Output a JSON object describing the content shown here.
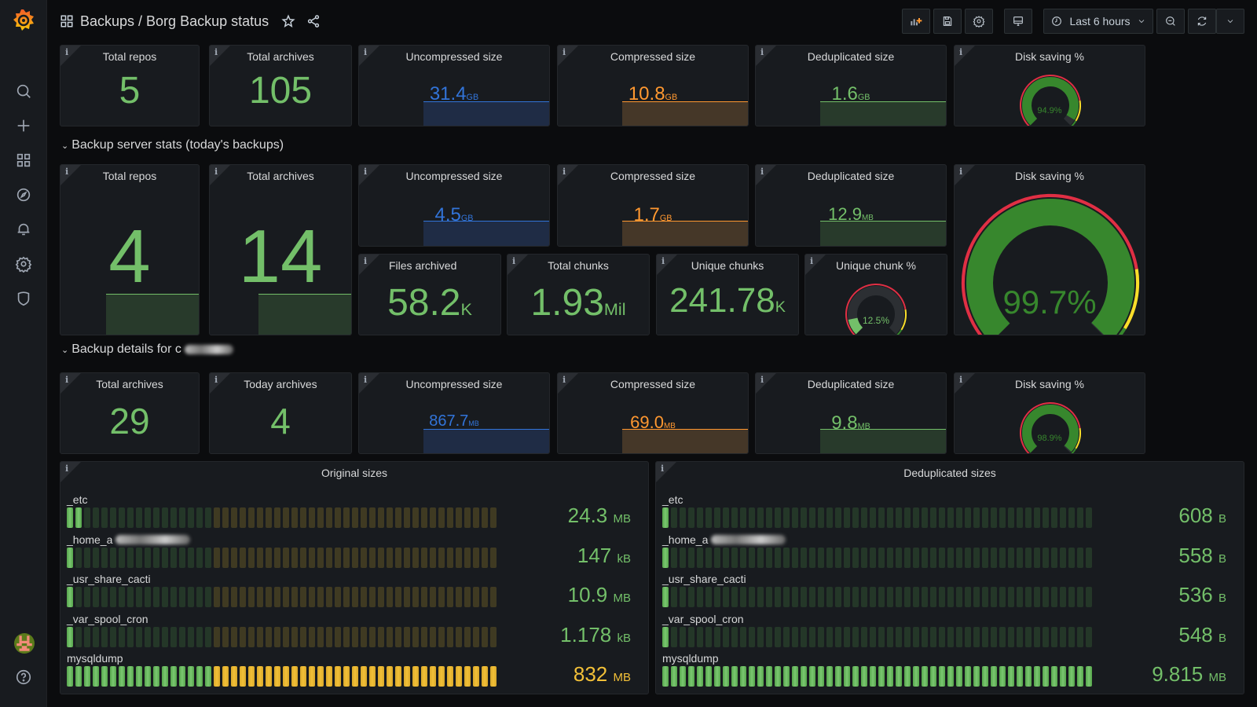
{
  "header": {
    "breadcrumb": "Backups / Borg Backup status",
    "time_range": "Last 6 hours"
  },
  "icons": {
    "sidebar": [
      "search-icon",
      "plus-icon",
      "dashboards-icon",
      "explore-compass-icon",
      "alerting-bell-icon",
      "configuration-gear-icon",
      "shield-icon"
    ],
    "bottom": [
      "avatar",
      "help-icon"
    ],
    "toolbar": [
      "add-panel-icon",
      "save-icon",
      "settings-icon",
      "tv-mode-icon",
      "clock-icon",
      "zoom-out-icon",
      "refresh-icon",
      "chevron-down-icon"
    ]
  },
  "colors": {
    "green": "#73bf69",
    "blue": "#3274d9",
    "orange": "#ff9830",
    "yellow": "#fade2a",
    "red": "#e02f44",
    "gauge_green": "#37872d"
  },
  "top_row": {
    "total_repos": {
      "title": "Total repos",
      "value": "5"
    },
    "total_archives": {
      "title": "Total archives",
      "value": "105"
    },
    "uncompressed": {
      "title": "Uncompressed size",
      "value": "31.4",
      "unit": "GB"
    },
    "compressed": {
      "title": "Compressed size",
      "value": "10.8",
      "unit": "GB"
    },
    "deduplicated": {
      "title": "Deduplicated size",
      "value": "1.6",
      "unit": "GB"
    },
    "disk_saving": {
      "title": "Disk saving %",
      "value": "94.9%",
      "percent": 94.9
    }
  },
  "server_row": {
    "title": "Backup server stats (today's backups)",
    "total_repos": {
      "title": "Total repos",
      "value": "4"
    },
    "total_archives": {
      "title": "Total archives",
      "value": "14"
    },
    "uncompressed": {
      "title": "Uncompressed size",
      "value": "4.5",
      "unit": "GB"
    },
    "compressed": {
      "title": "Compressed size",
      "value": "1.7",
      "unit": "GB"
    },
    "deduplicated": {
      "title": "Deduplicated size",
      "value": "12.9",
      "unit": "MB"
    },
    "files_archived": {
      "title": "Files archived",
      "value": "58.2",
      "unit": "K"
    },
    "total_chunks": {
      "title": "Total chunks",
      "value": "1.93",
      "unit": "Mil"
    },
    "unique_chunks": {
      "title": "Unique chunks",
      "value": "241.78",
      "unit": "K"
    },
    "unique_chunk_pct": {
      "title": "Unique chunk %",
      "value": "12.5%",
      "percent": 12.5
    },
    "disk_saving": {
      "title": "Disk saving %",
      "value": "99.7%",
      "percent": 99.7
    }
  },
  "details_row": {
    "title": "Backup details for c",
    "total_archives": {
      "title": "Total archives",
      "value": "29"
    },
    "today_archives": {
      "title": "Today archives",
      "value": "4"
    },
    "uncompressed": {
      "title": "Uncompressed size",
      "value": "867.7",
      "unit": "MB"
    },
    "compressed": {
      "title": "Compressed size",
      "value": "69.0",
      "unit": "MB"
    },
    "deduplicated": {
      "title": "Deduplicated size",
      "value": "9.8",
      "unit": "MB"
    },
    "disk_saving": {
      "title": "Disk saving %",
      "value": "98.9%",
      "percent": 98.9
    }
  },
  "original_sizes": {
    "title": "Original sizes",
    "rows": [
      {
        "label": "_etc",
        "value": "24.3",
        "unit": "MB",
        "lit_cells": 2,
        "color": "green"
      },
      {
        "label": "_home_a",
        "value": "147",
        "unit": "kB",
        "lit_cells": 1,
        "color": "green"
      },
      {
        "label": "_usr_share_cacti",
        "value": "10.9",
        "unit": "MB",
        "lit_cells": 1,
        "color": "green"
      },
      {
        "label": "_var_spool_cron",
        "value": "1.178",
        "unit": "kB",
        "lit_cells": 1,
        "color": "green"
      },
      {
        "label": "mysqldump",
        "value": "832",
        "unit": "MB",
        "lit_cells": 50,
        "color": "yellow"
      }
    ]
  },
  "dedup_sizes": {
    "title": "Deduplicated sizes",
    "rows": [
      {
        "label": "_etc",
        "value": "608",
        "unit": "B",
        "lit_cells": 1,
        "color": "green"
      },
      {
        "label": "_home_a",
        "value": "558",
        "unit": "B",
        "lit_cells": 1,
        "color": "green"
      },
      {
        "label": "_usr_share_cacti",
        "value": "536",
        "unit": "B",
        "lit_cells": 1,
        "color": "green"
      },
      {
        "label": "_var_spool_cron",
        "value": "548",
        "unit": "B",
        "lit_cells": 1,
        "color": "green"
      },
      {
        "label": "mysqldump",
        "value": "9.815",
        "unit": "MB",
        "lit_cells": 50,
        "color": "green"
      }
    ]
  }
}
